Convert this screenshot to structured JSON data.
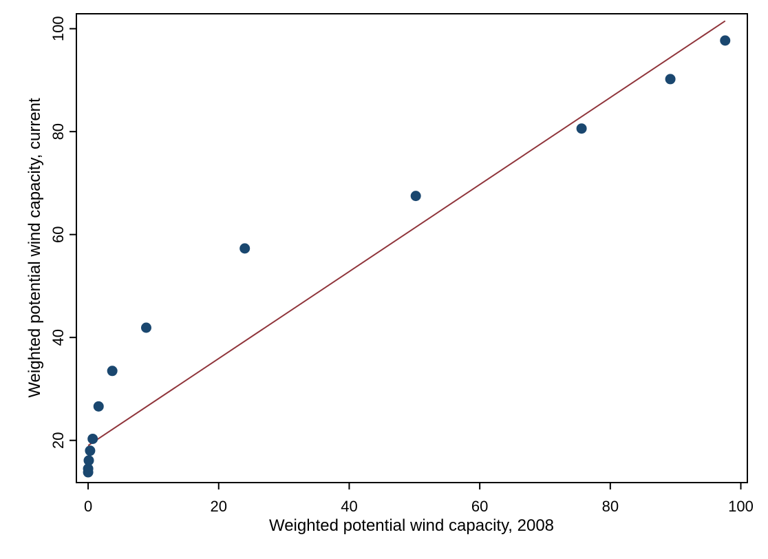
{
  "chart_data": {
    "type": "scatter",
    "title": "",
    "xlabel": "Weighted potential wind capacity, 2008",
    "ylabel": "Weighted potential wind capacity, current",
    "xlim": [
      -1.8,
      101
    ],
    "ylim": [
      11.8,
      102.9
    ],
    "xticks": [
      0,
      20,
      40,
      60,
      80,
      100
    ],
    "yticks": [
      20,
      40,
      60,
      80,
      100
    ],
    "xtick_labels": [
      "0",
      "20",
      "40",
      "60",
      "80",
      "100"
    ],
    "ytick_labels": [
      "20",
      "40",
      "60",
      "80",
      "100"
    ],
    "grid": false,
    "series": [
      {
        "type": "scatter",
        "color": "#1a476f",
        "points": [
          [
            0.0,
            13.8
          ],
          [
            0.0,
            14.5
          ],
          [
            0.1,
            16.1
          ],
          [
            0.3,
            18.0
          ],
          [
            0.7,
            20.3
          ],
          [
            1.6,
            26.6
          ],
          [
            3.7,
            33.5
          ],
          [
            8.9,
            41.9
          ],
          [
            24.0,
            57.3
          ],
          [
            50.2,
            67.5
          ],
          [
            75.6,
            80.6
          ],
          [
            89.2,
            90.2
          ],
          [
            97.6,
            97.7
          ]
        ]
      },
      {
        "type": "line",
        "color": "#90353b",
        "points": [
          [
            0.0,
            19.0
          ],
          [
            97.6,
            101.5
          ]
        ]
      }
    ]
  }
}
